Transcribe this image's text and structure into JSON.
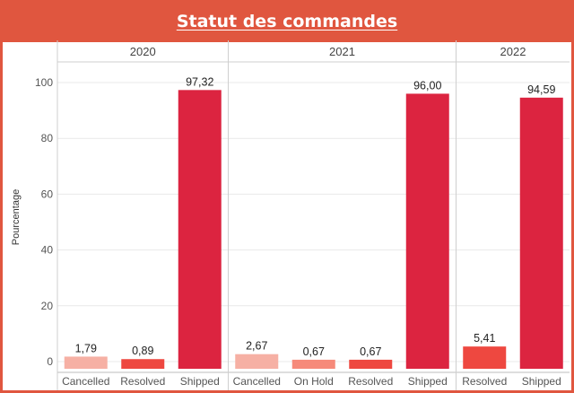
{
  "header": {
    "title": "Statut des commandes"
  },
  "colors": {
    "Cancelled": "#f6b0a4",
    "On Hold": "#f68a7a",
    "Resolved": "#ee4840",
    "Shipped": "#dc2440",
    "title_bg": "#e0563f",
    "grid": "#e9e9e9"
  },
  "chart_data": {
    "type": "bar",
    "title": "Statut des commandes",
    "ylabel": "Pourcentage",
    "xlabel": "",
    "ylim": [
      0,
      100
    ],
    "yticks": [
      "0",
      "20",
      "40",
      "60",
      "80",
      "100"
    ],
    "ytick_values": [
      0,
      20,
      40,
      60,
      80,
      100
    ],
    "grid": true,
    "panels": [
      {
        "label": "2020",
        "categories": [
          "Cancelled",
          "Resolved",
          "Shipped"
        ],
        "values": [
          1.79,
          0.89,
          97.32
        ],
        "labels": [
          "1,79",
          "0,89",
          "97,32"
        ]
      },
      {
        "label": "2021",
        "categories": [
          "Cancelled",
          "On Hold",
          "Resolved",
          "Shipped"
        ],
        "values": [
          2.67,
          0.67,
          0.67,
          96.0
        ],
        "labels": [
          "2,67",
          "0,67",
          "0,67",
          "96,00"
        ]
      },
      {
        "label": "2022",
        "categories": [
          "Resolved",
          "Shipped"
        ],
        "values": [
          5.41,
          94.59
        ],
        "labels": [
          "5,41",
          "94,59"
        ]
      }
    ]
  }
}
